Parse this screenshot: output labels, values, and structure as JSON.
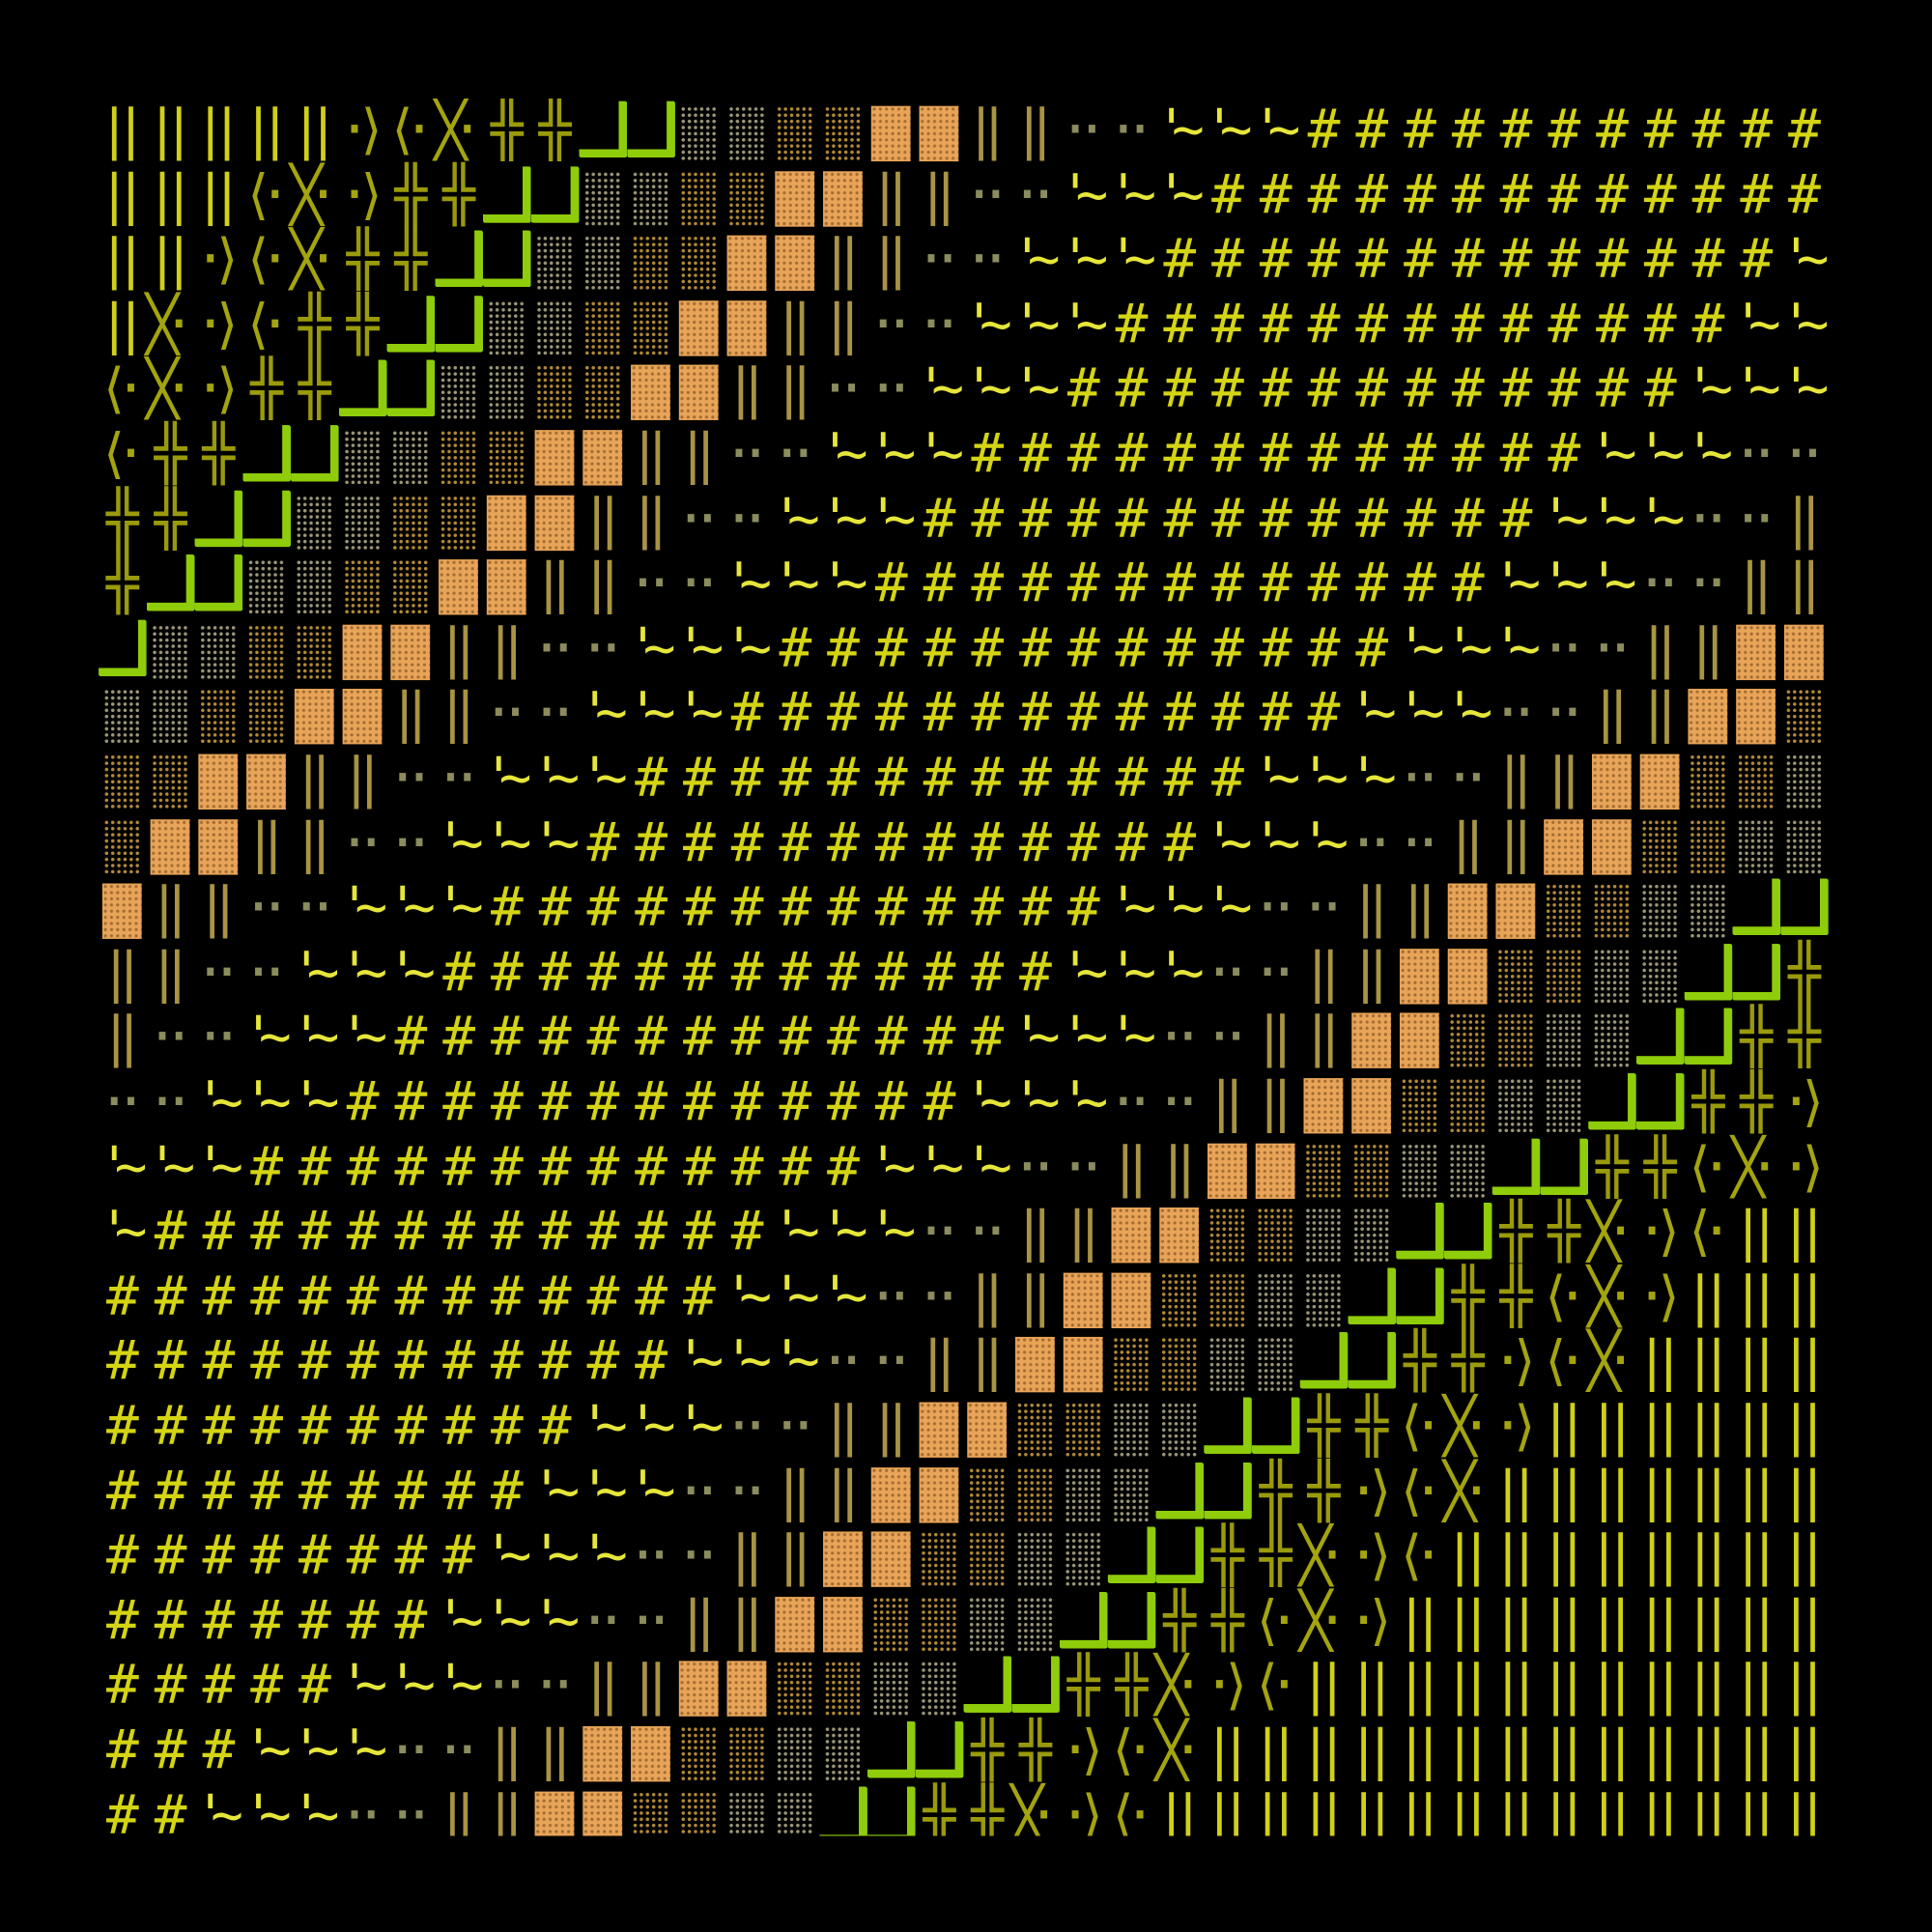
{
  "artwork": {
    "background": "#000000",
    "levels": [
      {
        "kind": "text",
        "glyphs": [
          "||"
        ],
        "color": "#d0d018"
      },
      {
        "kind": "text",
        "glyphs": [
          "⟨·",
          "╳·",
          "·⟩"
        ],
        "color": "#a4a40e"
      },
      {
        "kind": "text",
        "glyphs": [
          "╬"
        ],
        "color": "#9a9a0c"
      },
      {
        "kind": "green",
        "color": "#8fcc0a"
      },
      {
        "kind": "dots",
        "color": "#9c9878"
      },
      {
        "kind": "dots",
        "color": "#b38a3a"
      },
      {
        "kind": "box",
        "color": "#e8a458"
      },
      {
        "kind": "text",
        "glyphs": [
          "‖"
        ],
        "color": "#a89442"
      },
      {
        "kind": "text",
        "glyphs": [
          "··"
        ],
        "color": "#8c8c5c"
      },
      {
        "kind": "text",
        "glyphs": [
          "'~"
        ],
        "color": "#e6e63a"
      },
      {
        "kind": "text",
        "glyphs": [
          "#"
        ],
        "color": "#d4d414"
      }
    ]
  }
}
